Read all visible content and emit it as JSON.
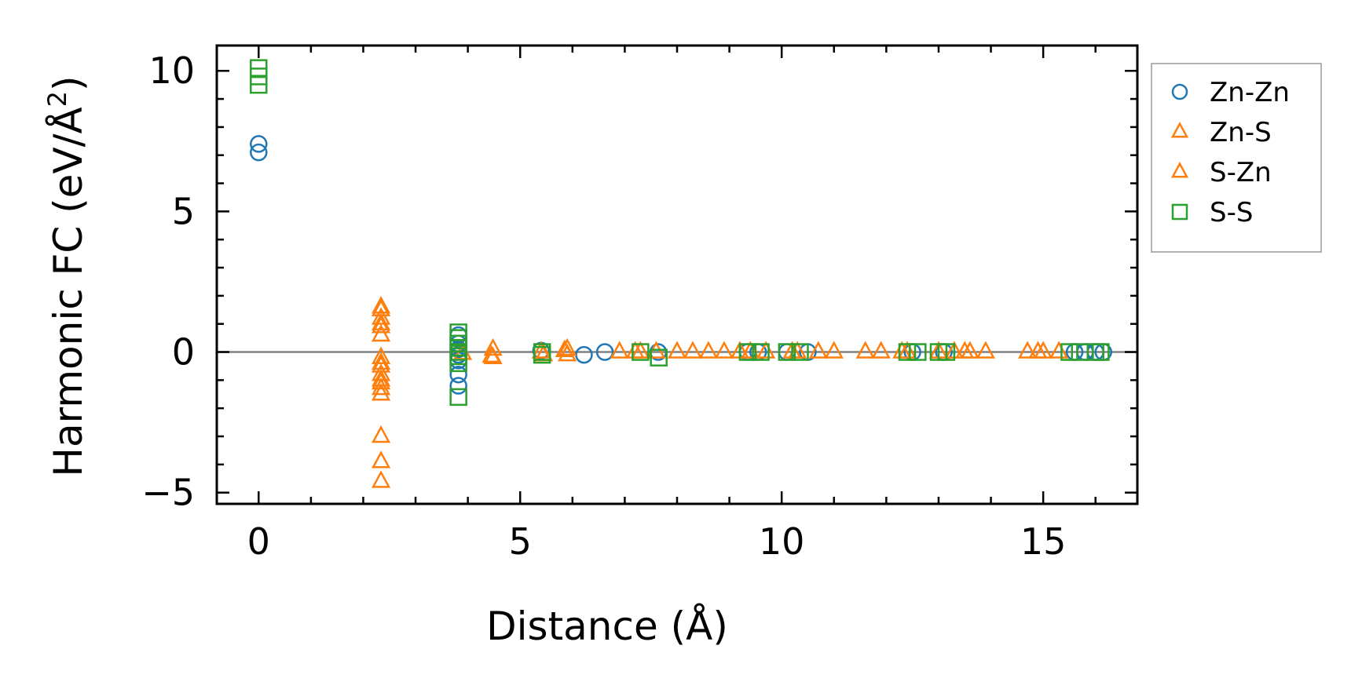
{
  "chart_data": {
    "type": "scatter",
    "title": "",
    "xlabel": "Distance (Å)",
    "ylabel_main": "Harmonic FC (eV/Å",
    "ylabel_sup": "2",
    "ylabel_close": ")",
    "xlim": [
      -0.8,
      16.8
    ],
    "ylim": [
      -5.4,
      10.9
    ],
    "xticks": [
      0,
      5,
      10,
      15
    ],
    "yticks": [
      -5,
      0,
      5,
      10
    ],
    "xtick_labels": [
      "0",
      "5",
      "10",
      "15"
    ],
    "ytick_labels": [
      "−5",
      "0",
      "5",
      "10"
    ],
    "x_minor_step": 1,
    "y_minor_step": 1,
    "zero_line": true,
    "grid": false,
    "legend_position": "outside-right-top",
    "series": [
      {
        "name": "Zn-Zn",
        "marker": "circle",
        "color": "#1f77b4",
        "points": [
          [
            0,
            7.4
          ],
          [
            0,
            7.1
          ],
          [
            3.82,
            0.6
          ],
          [
            3.82,
            0.3
          ],
          [
            3.82,
            0.1
          ],
          [
            3.82,
            -0.1
          ],
          [
            3.82,
            -0.3
          ],
          [
            3.82,
            -0.8
          ],
          [
            3.82,
            -1.2
          ],
          [
            5.4,
            0.05
          ],
          [
            6.22,
            -0.1
          ],
          [
            6.62,
            0.0
          ],
          [
            7.64,
            0.0
          ],
          [
            9.35,
            0.0
          ],
          [
            9.55,
            0.0
          ],
          [
            10.1,
            0.0
          ],
          [
            10.5,
            0.0
          ],
          [
            12.5,
            0.0
          ],
          [
            13.1,
            0.0
          ],
          [
            15.6,
            0.0
          ],
          [
            15.8,
            0.0
          ],
          [
            16.0,
            0.0
          ],
          [
            16.15,
            0.0
          ]
        ]
      },
      {
        "name": "Zn-S",
        "marker": "triangle",
        "color": "#ff7f0e",
        "points": [
          [
            2.34,
            1.5
          ],
          [
            2.34,
            1.2
          ],
          [
            2.34,
            0.9
          ],
          [
            2.34,
            0.6
          ],
          [
            2.34,
            -0.2
          ],
          [
            2.34,
            -0.5
          ],
          [
            2.34,
            -0.8
          ],
          [
            2.34,
            -1.1
          ],
          [
            2.34,
            -1.3
          ],
          [
            2.34,
            -3.0
          ],
          [
            2.34,
            -3.9
          ],
          [
            2.34,
            -4.6
          ],
          [
            3.9,
            -0.05
          ],
          [
            4.48,
            0.1
          ],
          [
            4.48,
            -0.2
          ],
          [
            5.45,
            -0.1
          ],
          [
            5.9,
            0.1
          ],
          [
            5.9,
            -0.1
          ],
          [
            6.9,
            0.0
          ],
          [
            7.3,
            0.0
          ],
          [
            7.6,
            0.0
          ],
          [
            8.0,
            0.0
          ],
          [
            8.3,
            0.0
          ],
          [
            8.6,
            0.0
          ],
          [
            8.9,
            0.0
          ],
          [
            9.4,
            0.0
          ],
          [
            9.7,
            0.0
          ],
          [
            10.3,
            0.0
          ],
          [
            10.7,
            0.0
          ],
          [
            11.0,
            0.0
          ],
          [
            11.6,
            0.0
          ],
          [
            11.9,
            0.0
          ],
          [
            12.3,
            0.0
          ],
          [
            13.0,
            0.0
          ],
          [
            13.3,
            0.0
          ],
          [
            13.6,
            0.0
          ],
          [
            13.9,
            0.0
          ],
          [
            14.7,
            0.0
          ],
          [
            15.0,
            0.0
          ],
          [
            15.3,
            0.0
          ]
        ]
      },
      {
        "name": "S-Zn",
        "marker": "triangle",
        "color": "#ff7f0e",
        "points": [
          [
            2.34,
            1.6
          ],
          [
            2.34,
            1.0
          ],
          [
            2.34,
            -0.4
          ],
          [
            2.34,
            -1.0
          ],
          [
            2.34,
            -1.5
          ],
          [
            4.45,
            -0.15
          ],
          [
            5.4,
            0.0
          ],
          [
            5.85,
            0.05
          ],
          [
            7.2,
            0.0
          ],
          [
            9.2,
            0.0
          ],
          [
            10.2,
            0.0
          ],
          [
            12.4,
            0.0
          ],
          [
            13.5,
            0.0
          ],
          [
            14.9,
            0.0
          ]
        ]
      },
      {
        "name": "S-S",
        "marker": "square",
        "color": "#2ca02c",
        "points": [
          [
            0,
            10.1
          ],
          [
            0,
            9.8
          ],
          [
            0,
            9.5
          ],
          [
            3.82,
            0.7
          ],
          [
            3.82,
            0.5
          ],
          [
            3.82,
            0.3
          ],
          [
            3.82,
            0.15
          ],
          [
            3.82,
            0.0
          ],
          [
            3.82,
            -0.15
          ],
          [
            3.82,
            -0.4
          ],
          [
            3.82,
            -1.6
          ],
          [
            5.42,
            -0.1
          ],
          [
            5.42,
            0.0
          ],
          [
            7.3,
            0.0
          ],
          [
            7.65,
            -0.2
          ],
          [
            9.35,
            0.0
          ],
          [
            9.6,
            0.0
          ],
          [
            10.1,
            0.0
          ],
          [
            10.35,
            0.0
          ],
          [
            12.4,
            0.0
          ],
          [
            12.6,
            0.0
          ],
          [
            13.0,
            0.0
          ],
          [
            13.15,
            0.0
          ],
          [
            15.5,
            0.0
          ],
          [
            15.7,
            0.0
          ],
          [
            16.0,
            0.0
          ],
          [
            16.1,
            0.0
          ]
        ]
      }
    ]
  }
}
